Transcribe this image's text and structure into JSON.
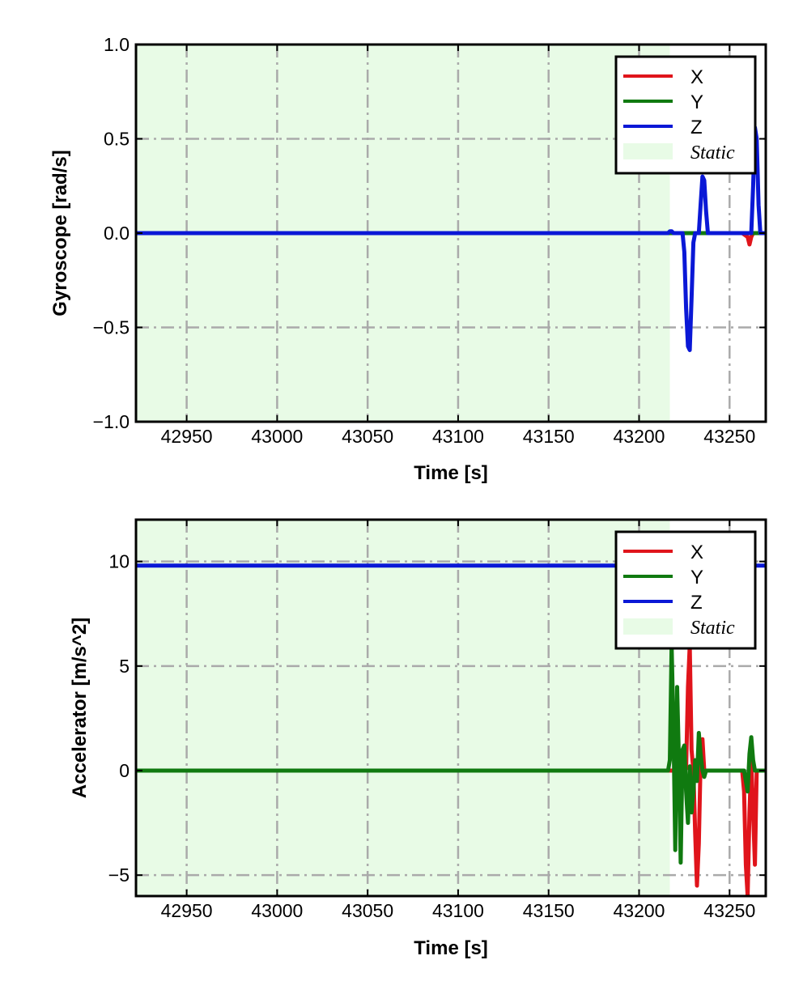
{
  "chart_data": [
    {
      "type": "line",
      "xlabel": "Time [s]",
      "ylabel": "Gyroscope [rad/s]",
      "xlim": [
        42922,
        43270
      ],
      "ylim": [
        -1.0,
        1.0
      ],
      "xticks": [
        42950,
        43000,
        43050,
        43100,
        43150,
        43200,
        43250
      ],
      "xtick_labels": [
        "42950",
        "43000",
        "43050",
        "43100",
        "43150",
        "43200",
        "43250"
      ],
      "yticks": [
        1.0,
        0.5,
        0.0,
        -0.5,
        -1.0
      ],
      "ytick_labels": [
        "1.0",
        "0.5",
        "0.0",
        "−0.5",
        "−1.0"
      ],
      "grid": true,
      "legend_position": "top-right",
      "static_region": {
        "label": "Static",
        "x_start": 42922,
        "x_end": 43217,
        "color": "#e8fbe6"
      },
      "series": [
        {
          "name": "X",
          "color": "#e0141b",
          "x": [
            42922,
            43217,
            43224,
            43228,
            43232,
            43237,
            43240,
            43246,
            43251,
            43257,
            43260,
            43261,
            43262,
            43263,
            43264,
            43270
          ],
          "y": [
            0.0,
            0.0,
            0.0,
            0.0,
            0.0,
            0.0,
            0.0,
            0.0,
            0.0,
            0.0,
            -0.02,
            -0.06,
            -0.02,
            0.0,
            0.0,
            0.0
          ]
        },
        {
          "name": "Y",
          "color": "#107a10",
          "x": [
            42922,
            43217,
            43230,
            43240,
            43250,
            43260,
            43270
          ],
          "y": [
            0.0,
            0.0,
            0.0,
            0.0,
            0.0,
            0.0,
            0.0
          ]
        },
        {
          "name": "Z",
          "color": "#0a18d6",
          "x": [
            42922,
            43216,
            43217,
            43218,
            43219,
            43224,
            43225,
            43226,
            43227,
            43228,
            43229,
            43230,
            43231,
            43233,
            43234,
            43235,
            43236,
            43237,
            43238,
            43240,
            43262,
            43263,
            43264,
            43265,
            43266,
            43267,
            43270
          ],
          "y": [
            0.0,
            0.0,
            0.01,
            0.01,
            0.0,
            0.0,
            -0.1,
            -0.4,
            -0.6,
            -0.62,
            -0.35,
            -0.05,
            0.0,
            0.0,
            0.15,
            0.3,
            0.28,
            0.12,
            0.0,
            0.0,
            0.0,
            0.25,
            0.56,
            0.5,
            0.15,
            0.0,
            0.0
          ]
        }
      ]
    },
    {
      "type": "line",
      "xlabel": "Time [s]",
      "ylabel": "Accelerator [m/s^2]",
      "xlim": [
        42922,
        43270
      ],
      "ylim": [
        -6.0,
        12.0
      ],
      "xticks": [
        42950,
        43000,
        43050,
        43100,
        43150,
        43200,
        43250
      ],
      "xtick_labels": [
        "42950",
        "43000",
        "43050",
        "43100",
        "43150",
        "43200",
        "43250"
      ],
      "yticks": [
        10,
        5,
        0,
        -5
      ],
      "ytick_labels": [
        "10",
        "5",
        "0",
        "−5"
      ],
      "grid": true,
      "legend_position": "top-right",
      "static_region": {
        "label": "Static",
        "x_start": 42922,
        "x_end": 43217,
        "color": "#e8fbe6"
      },
      "series": [
        {
          "name": "X",
          "color": "#e0141b",
          "x": [
            42922,
            43217,
            43222,
            43224,
            43226,
            43227,
            43228,
            43229,
            43230,
            43231,
            43232,
            43233,
            43234,
            43235,
            43236,
            43237,
            43240,
            43257,
            43258,
            43259,
            43260,
            43261,
            43262,
            43263,
            43264,
            43265,
            43270
          ],
          "y": [
            0.0,
            0.0,
            0.0,
            0.05,
            0.1,
            4.0,
            6.0,
            1.0,
            0.0,
            -3.0,
            -5.5,
            -3.5,
            0.5,
            1.5,
            0.0,
            0.0,
            0.0,
            0.0,
            -1.0,
            -4.5,
            -6.0,
            -2.0,
            0.5,
            -2.0,
            -4.5,
            0.0,
            0.0
          ]
        },
        {
          "name": "Y",
          "color": "#107a10",
          "x": [
            42922,
            43216,
            43217,
            43218,
            43219,
            43220,
            43221,
            43222,
            43223,
            43224,
            43225,
            43226,
            43227,
            43228,
            43229,
            43230,
            43231,
            43232,
            43233,
            43234,
            43235,
            43236,
            43237,
            43238,
            43240,
            43258,
            43259,
            43260,
            43261,
            43262,
            43263,
            43264,
            43270
          ],
          "y": [
            0.0,
            0.0,
            0.5,
            6.0,
            2.0,
            -3.8,
            4.0,
            0.5,
            -4.4,
            1.0,
            1.2,
            -1.0,
            -2.5,
            0.2,
            -2.0,
            -1.0,
            0.5,
            -0.5,
            1.8,
            0.8,
            0.0,
            -0.3,
            0.0,
            0.0,
            0.0,
            0.0,
            -0.5,
            -1.0,
            0.8,
            1.6,
            0.5,
            0.0,
            0.0
          ]
        },
        {
          "name": "Z",
          "color": "#0a18d6",
          "x": [
            42922,
            43217,
            43218,
            43264,
            43270
          ],
          "y": [
            9.8,
            9.8,
            9.8,
            9.8,
            9.8
          ]
        }
      ]
    }
  ]
}
